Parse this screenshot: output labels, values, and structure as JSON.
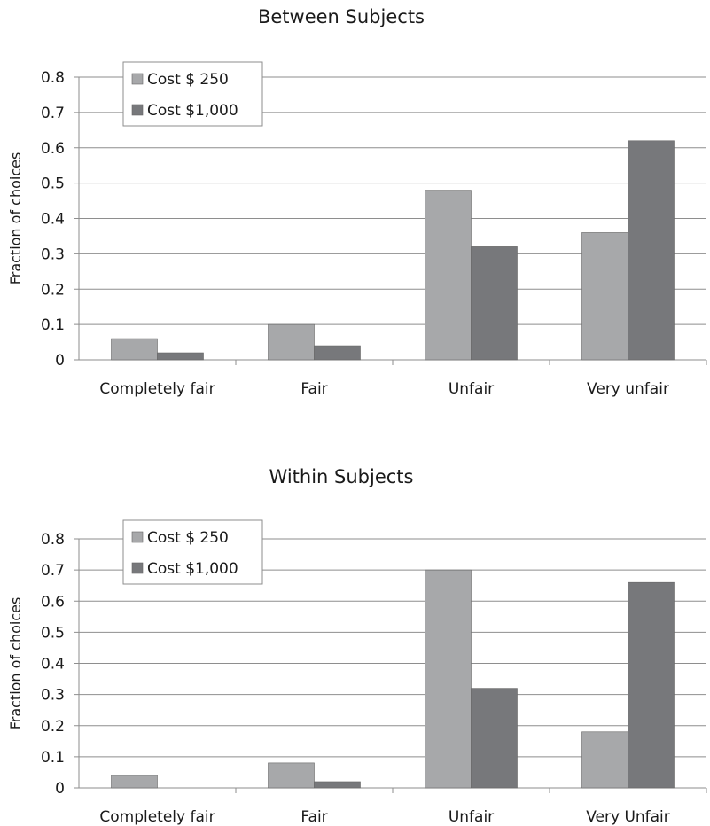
{
  "chart_data": [
    {
      "type": "bar",
      "title": "Between Subjects",
      "xlabel": "",
      "ylabel": "Fraction of choices",
      "ylim": [
        0,
        0.8
      ],
      "yticks": [
        "0",
        "0.1",
        "0.2",
        "0.3",
        "0.4",
        "0.5",
        "0.6",
        "0.7",
        "0.8"
      ],
      "categories": [
        "Completely fair",
        "Fair",
        "Unfair",
        "Very unfair"
      ],
      "series": [
        {
          "name": "Cost $ 250",
          "color": "#a7a8aa",
          "values": [
            0.06,
            0.1,
            0.48,
            0.36
          ]
        },
        {
          "name": "Cost  $1,000",
          "color": "#77787b",
          "values": [
            0.02,
            0.04,
            0.32,
            0.62
          ]
        }
      ],
      "grid": true,
      "legend": "top-left"
    },
    {
      "type": "bar",
      "title": "Within Subjects",
      "xlabel": "",
      "ylabel": "Fraction of choices",
      "ylim": [
        0,
        0.8
      ],
      "yticks": [
        "0",
        "0.1",
        "0.2",
        "0.3",
        "0.4",
        "0.5",
        "0.6",
        "0.7",
        "0.8"
      ],
      "categories": [
        "Completely fair",
        "Fair",
        "Unfair",
        "Very Unfair"
      ],
      "series": [
        {
          "name": "Cost $ 250",
          "color": "#a7a8aa",
          "values": [
            0.04,
            0.08,
            0.7,
            0.18
          ]
        },
        {
          "name": "Cost  $1,000",
          "color": "#77787b",
          "values": [
            0.0,
            0.02,
            0.32,
            0.66
          ]
        }
      ],
      "grid": true,
      "legend": "top-left"
    }
  ]
}
